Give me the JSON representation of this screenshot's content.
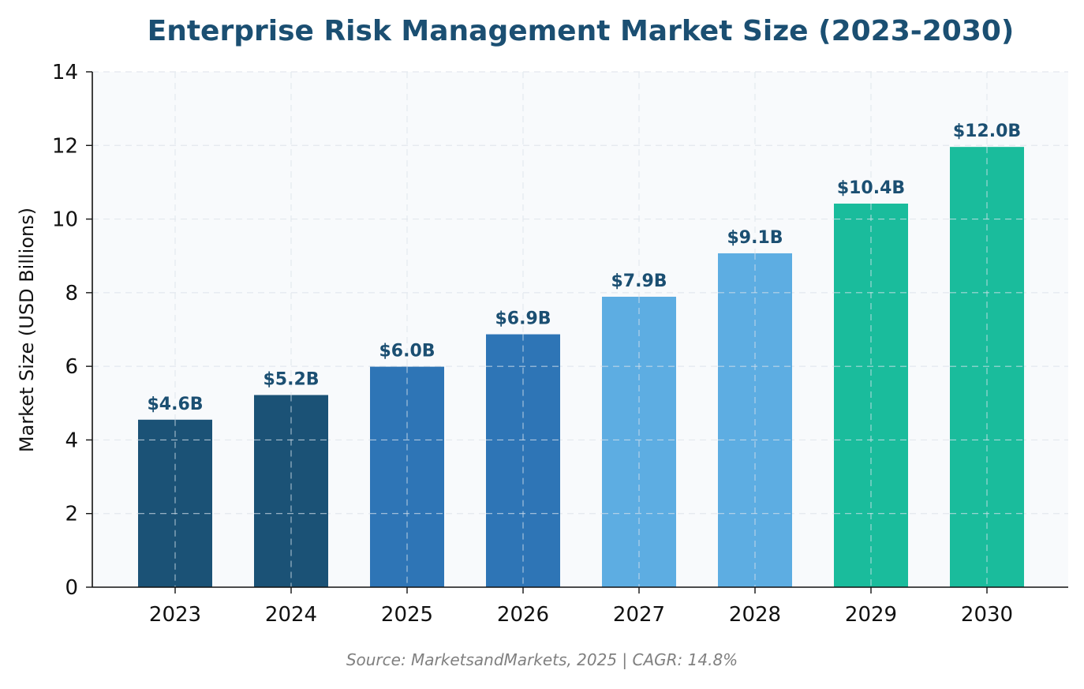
{
  "chart_data": {
    "type": "bar",
    "title": "Enterprise Risk Management Market Size (2023-2030)",
    "xlabel": "",
    "ylabel": "Market Size (USD Billions)",
    "categories": [
      "2023",
      "2024",
      "2025",
      "2026",
      "2027",
      "2028",
      "2029",
      "2030"
    ],
    "values": [
      4.55,
      5.22,
      5.99,
      6.87,
      7.89,
      9.07,
      10.42,
      11.96
    ],
    "value_labels": [
      "$4.6B",
      "$5.2B",
      "$6.0B",
      "$6.9B",
      "$7.9B",
      "$9.1B",
      "$10.4B",
      "$12.0B"
    ],
    "bar_colors": [
      "#1b5276",
      "#1b5276",
      "#2e75b6",
      "#2e75b6",
      "#5dade2",
      "#5dade2",
      "#1abc9c",
      "#1abc9c"
    ],
    "ylim": [
      0,
      14
    ],
    "yticks": [
      "0",
      "2",
      "4",
      "6",
      "8",
      "10",
      "12",
      "14"
    ],
    "grid": true,
    "legend": "none",
    "footnote": "Source: MarketsandMarkets, 2025 | CAGR: 14.8%"
  },
  "colors": {
    "title": "#1b4f72",
    "value_label": "#1b4f72",
    "plot_background": "#f8fafc",
    "grid": "#e3e8ee",
    "bar_grid": "#d8e2ec",
    "axis": "#111111"
  }
}
